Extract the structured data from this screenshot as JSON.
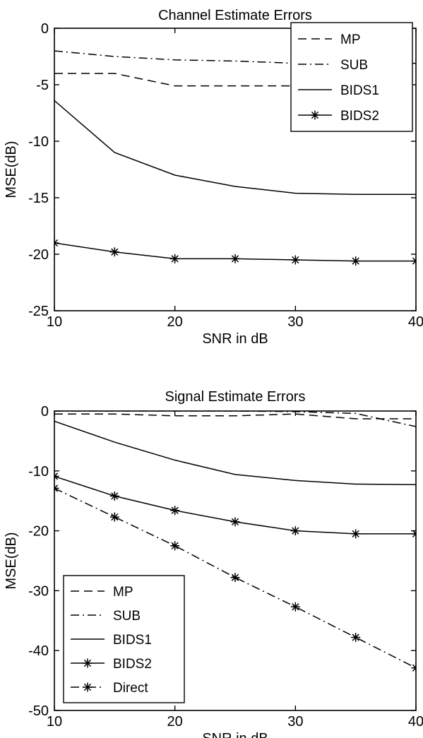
{
  "chart_data": [
    {
      "type": "line",
      "title": "Channel Estimate Errors",
      "xlabel": "SNR in dB",
      "ylabel": "MSE(dB)",
      "xlim": [
        10,
        40
      ],
      "ylim": [
        -25,
        0
      ],
      "xticks": [
        10,
        20,
        30,
        40
      ],
      "yticks": [
        0,
        -5,
        -10,
        -15,
        -20,
        -25
      ],
      "grid": false,
      "legend_position": "top-right",
      "series": [
        {
          "name": "MP",
          "style": "dashed",
          "marker": "none",
          "x": [
            10,
            15,
            20,
            25,
            30,
            35,
            40
          ],
          "y": [
            -4.0,
            -4.0,
            -5.1,
            -5.1,
            -5.1,
            -5.1,
            -5.1
          ]
        },
        {
          "name": "SUB",
          "style": "dashdot",
          "marker": "none",
          "x": [
            10,
            15,
            20,
            25,
            30,
            35,
            40
          ],
          "y": [
            -2.0,
            -2.5,
            -2.8,
            -2.9,
            -3.1,
            -3.1,
            -3.1
          ]
        },
        {
          "name": "BIDS1",
          "style": "solid",
          "marker": "none",
          "x": [
            10,
            15,
            20,
            25,
            30,
            35,
            40
          ],
          "y": [
            -6.4,
            -11.0,
            -13.0,
            -14.0,
            -14.6,
            -14.7,
            -14.7
          ]
        },
        {
          "name": "BIDS2",
          "style": "solid",
          "marker": "star",
          "x": [
            10,
            15,
            20,
            25,
            30,
            35,
            40
          ],
          "y": [
            -19.0,
            -19.8,
            -20.4,
            -20.4,
            -20.5,
            -20.6,
            -20.6
          ]
        }
      ]
    },
    {
      "type": "line",
      "title": "Signal Estimate Errors",
      "xlabel": "SNR in dB",
      "ylabel": "MSE(dB)",
      "xlim": [
        10,
        40
      ],
      "ylim": [
        -50,
        0
      ],
      "xticks": [
        10,
        20,
        30,
        40
      ],
      "yticks": [
        0,
        -10,
        -20,
        -30,
        -40,
        -50
      ],
      "grid": false,
      "legend_position": "bottom-left",
      "series": [
        {
          "name": "MP",
          "style": "dashed",
          "marker": "none",
          "x": [
            10,
            15,
            20,
            25,
            30,
            35,
            40
          ],
          "y": [
            -0.5,
            -0.5,
            -0.8,
            -0.8,
            -0.5,
            -1.3,
            -1.3
          ]
        },
        {
          "name": "SUB",
          "style": "dashdot",
          "marker": "none",
          "x": [
            10,
            15,
            20,
            25,
            30,
            35,
            40
          ],
          "y": [
            0,
            0,
            0,
            0,
            -0.1,
            -0.4,
            -2.6
          ]
        },
        {
          "name": "BIDS1",
          "style": "solid",
          "marker": "none",
          "x": [
            10,
            15,
            20,
            25,
            30,
            35,
            40
          ],
          "y": [
            -1.7,
            -5.2,
            -8.2,
            -10.6,
            -11.6,
            -12.2,
            -12.3
          ]
        },
        {
          "name": "BIDS2",
          "style": "solid",
          "marker": "star",
          "x": [
            10,
            15,
            20,
            25,
            30,
            35,
            40
          ],
          "y": [
            -10.9,
            -14.2,
            -16.6,
            -18.5,
            -20.0,
            -20.5,
            -20.5
          ]
        },
        {
          "name": "Direct",
          "style": "dashdot",
          "marker": "star",
          "x": [
            10,
            15,
            20,
            25,
            30,
            35,
            40
          ],
          "y": [
            -12.9,
            -17.7,
            -22.5,
            -27.8,
            -32.7,
            -37.8,
            -42.9
          ]
        }
      ]
    }
  ]
}
